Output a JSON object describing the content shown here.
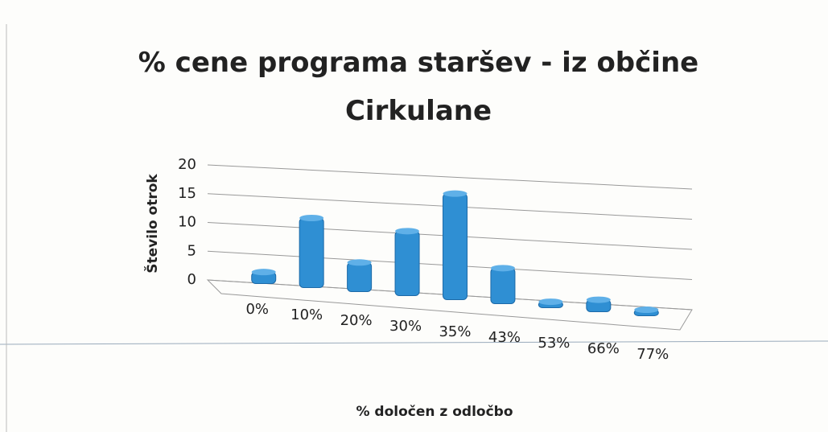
{
  "chart_data": {
    "type": "bar3d",
    "title": "% cene programa staršev - iz občine Cirkulane",
    "x_label": "% določen z odločbo",
    "y_label": "Število otrok",
    "categories": [
      "0%",
      "10%",
      "20%",
      "30%",
      "35%",
      "43%",
      "53%",
      "66%",
      "77%"
    ],
    "values": [
      2,
      12,
      5,
      11,
      18,
      6,
      1,
      2,
      1
    ],
    "color": "#2f8fd3",
    "ylim": [
      0,
      20
    ],
    "yticks": [
      0,
      5,
      10,
      15,
      20
    ],
    "grid": true
  }
}
